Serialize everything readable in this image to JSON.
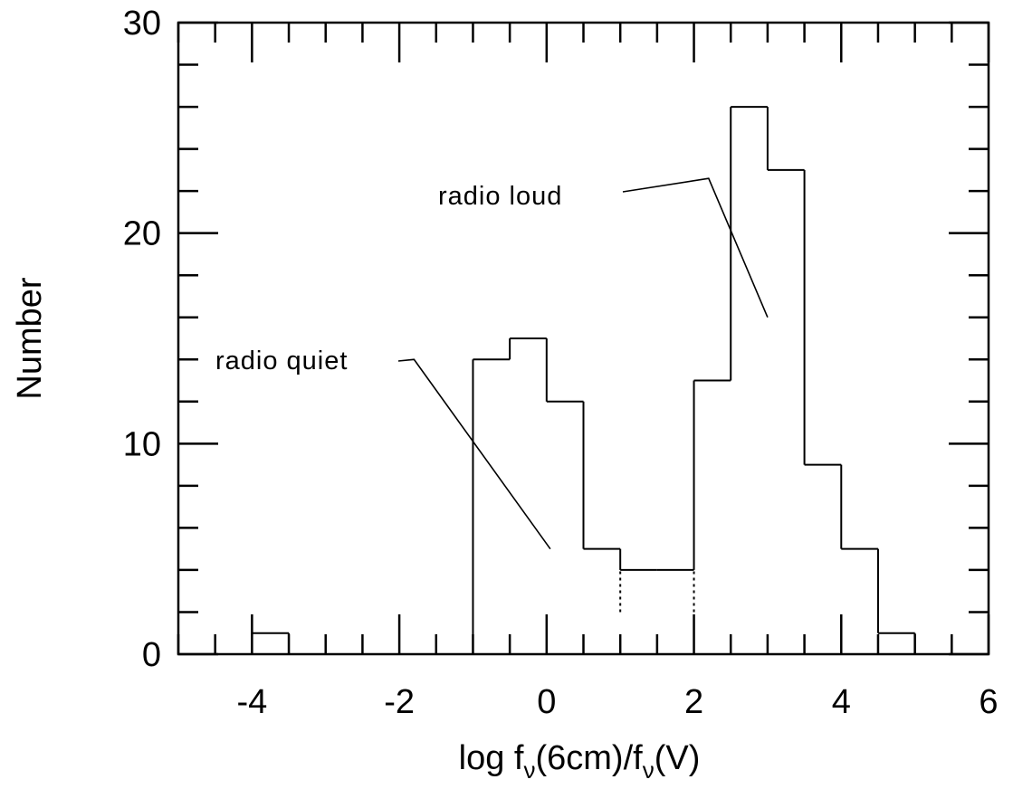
{
  "chart_data": {
    "type": "histogram",
    "xlabel": "log f",
    "xlabel_sub": "ν",
    "xlabel_mid": "(6cm)/f",
    "xlabel_end": "(V)",
    "ylabel": "Number",
    "xlim": [
      -5,
      6
    ],
    "ylim": [
      0,
      30
    ],
    "xticks_major": [
      -4,
      -2,
      0,
      2,
      4,
      6
    ],
    "xticks_minor_step": 0.5,
    "yticks_major": [
      0,
      10,
      20,
      30
    ],
    "yticks_minor_step": 2,
    "bin_width": 0.5,
    "bins": [
      {
        "x0": -4.0,
        "count": 1
      },
      {
        "x0": -1.0,
        "count": 14
      },
      {
        "x0": -0.5,
        "count": 15
      },
      {
        "x0": 0.0,
        "count": 12
      },
      {
        "x0": 0.5,
        "count": 5
      },
      {
        "x0": 1.0,
        "count": 4
      },
      {
        "x0": 1.5,
        "count": 4
      },
      {
        "x0": 2.0,
        "count": 13
      },
      {
        "x0": 2.5,
        "count": 26
      },
      {
        "x0": 3.0,
        "count": 23
      },
      {
        "x0": 3.5,
        "count": 9
      },
      {
        "x0": 4.0,
        "count": 5
      },
      {
        "x0": 4.5,
        "count": 1
      }
    ],
    "dotted_edges": [
      1.0,
      2.0
    ],
    "dotted_edges_from_count": 2,
    "annotations": [
      {
        "text": "radio loud",
        "leader": [
          [
            2.2,
            22.6
          ],
          [
            3.0,
            16
          ]
        ]
      },
      {
        "text": "radio quiet",
        "leader": [
          [
            -1.8,
            14
          ],
          [
            0.05,
            5
          ]
        ]
      }
    ],
    "grid": false,
    "legend": "none"
  }
}
